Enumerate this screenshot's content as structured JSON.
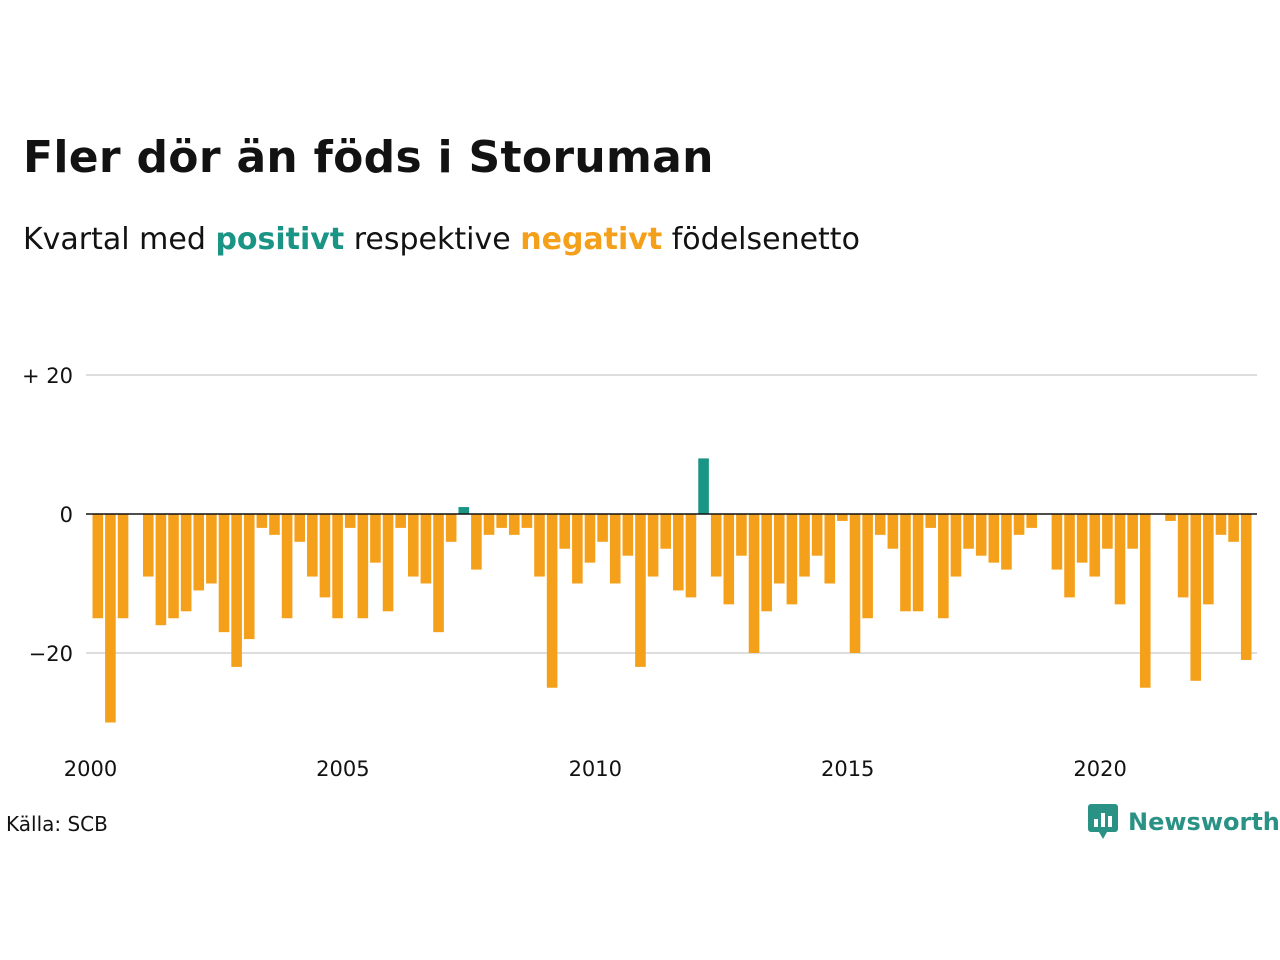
{
  "title": "Fler dör än föds i Storuman",
  "subtitle": {
    "prefix": "Kvartal med",
    "positive": "positivt",
    "middle": "respektive",
    "negative": "negativt",
    "suffix": "födelsenetto"
  },
  "source": "Källa: SCB",
  "brand": "Newsworthy",
  "colors": {
    "positive": "#1a9485",
    "negative": "#f5a01a",
    "grid": "#dddddd",
    "axis": "#121212"
  },
  "chart_data": {
    "type": "bar",
    "x_start": "2000 Q1",
    "x_end": "2023 Q1",
    "x_ticks": [
      "2000",
      "2005",
      "2010",
      "2015",
      "2020"
    ],
    "y_ticks": [
      "+ 20",
      "0",
      "−20"
    ],
    "y_tick_values": [
      20,
      0,
      -20
    ],
    "ylim": [
      -30,
      30
    ],
    "grid": true,
    "values": [
      -15,
      -30,
      -15,
      0,
      -9,
      -16,
      -15,
      -14,
      -11,
      -10,
      -17,
      -22,
      -18,
      -2,
      -3,
      -15,
      -4,
      -9,
      -12,
      -15,
      -2,
      -15,
      -7,
      -14,
      -2,
      -9,
      -10,
      -17,
      -4,
      1,
      -8,
      -3,
      -2,
      -3,
      -2,
      -9,
      -25,
      -5,
      -10,
      -7,
      -4,
      -10,
      -6,
      -22,
      -9,
      -5,
      -11,
      -12,
      8,
      -9,
      -13,
      -6,
      -20,
      -14,
      -10,
      -13,
      -9,
      -6,
      -10,
      -1,
      -20,
      -15,
      -3,
      -5,
      -14,
      -14,
      -2,
      -15,
      -9,
      -5,
      -6,
      -7,
      -8,
      -3,
      -2,
      0,
      -8,
      -12,
      -7,
      -9,
      -5,
      -13,
      -5,
      -25,
      0,
      -1,
      -12,
      -24,
      -13,
      -3,
      -4,
      -21
    ]
  }
}
